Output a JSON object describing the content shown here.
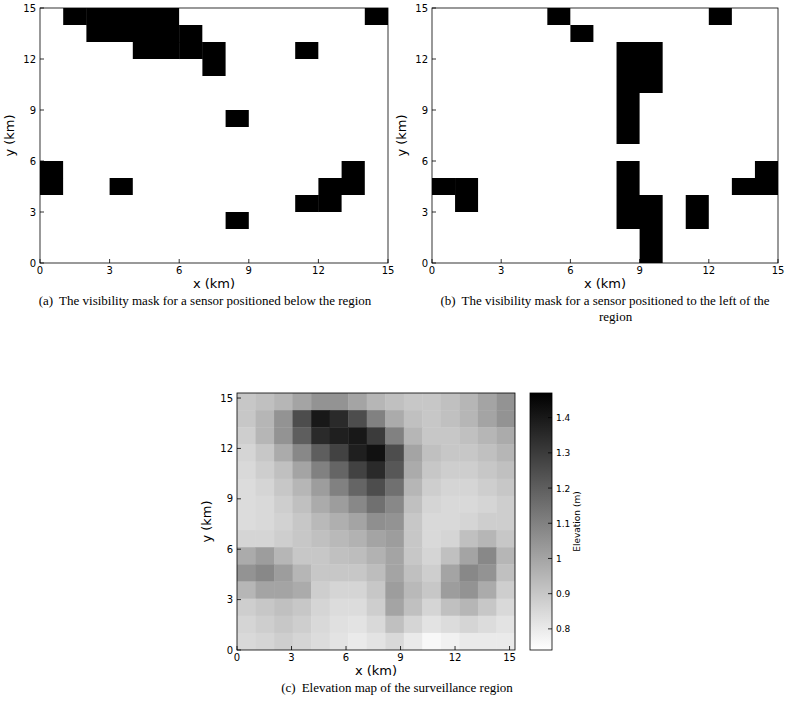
{
  "chart_data": [
    {
      "type": "heatmap",
      "panel_label": "(a)",
      "caption": "The visibility mask for a sensor positioned below the region",
      "x_label": "x (km)",
      "y_label": "y (km)",
      "xlim": [
        0,
        15
      ],
      "ylim": [
        0,
        15
      ],
      "xticks": [
        0,
        3,
        6,
        9,
        12,
        15
      ],
      "yticks": [
        0,
        3,
        6,
        9,
        12,
        15
      ],
      "cells": [
        [
          0,
          1,
          1,
          1,
          1,
          1,
          0,
          0,
          0,
          0,
          0,
          0,
          0,
          0,
          1
        ],
        [
          0,
          0,
          1,
          1,
          1,
          1,
          1,
          0,
          0,
          0,
          0,
          0,
          0,
          0,
          0
        ],
        [
          0,
          0,
          0,
          0,
          1,
          1,
          1,
          1,
          0,
          0,
          0,
          1,
          0,
          0,
          0
        ],
        [
          0,
          0,
          0,
          0,
          0,
          0,
          0,
          1,
          0,
          0,
          0,
          0,
          0,
          0,
          0
        ],
        [
          0,
          0,
          0,
          0,
          0,
          0,
          0,
          0,
          0,
          0,
          0,
          0,
          0,
          0,
          0
        ],
        [
          0,
          0,
          0,
          0,
          0,
          0,
          0,
          0,
          0,
          0,
          0,
          0,
          0,
          0,
          0
        ],
        [
          0,
          0,
          0,
          0,
          0,
          0,
          0,
          0,
          1,
          0,
          0,
          0,
          0,
          0,
          0
        ],
        [
          0,
          0,
          0,
          0,
          0,
          0,
          0,
          0,
          0,
          0,
          0,
          0,
          0,
          0,
          0
        ],
        [
          0,
          0,
          0,
          0,
          0,
          0,
          0,
          0,
          0,
          0,
          0,
          0,
          0,
          0,
          0
        ],
        [
          1,
          0,
          0,
          0,
          0,
          0,
          0,
          0,
          0,
          0,
          0,
          0,
          0,
          1,
          0
        ],
        [
          1,
          0,
          0,
          1,
          0,
          0,
          0,
          0,
          0,
          0,
          0,
          0,
          1,
          1,
          0
        ],
        [
          0,
          0,
          0,
          0,
          0,
          0,
          0,
          0,
          0,
          0,
          0,
          1,
          1,
          0,
          0
        ],
        [
          0,
          0,
          0,
          0,
          0,
          0,
          0,
          0,
          1,
          0,
          0,
          0,
          0,
          0,
          0
        ],
        [
          0,
          0,
          0,
          0,
          0,
          0,
          0,
          0,
          0,
          0,
          0,
          0,
          0,
          0,
          0
        ],
        [
          0,
          0,
          0,
          0,
          0,
          0,
          0,
          0,
          0,
          0,
          0,
          0,
          0,
          0,
          0
        ]
      ]
    },
    {
      "type": "heatmap",
      "panel_label": "(b)",
      "caption": "The visibility mask for a sensor positioned to the left of the region",
      "x_label": "x (km)",
      "y_label": "y (km)",
      "xlim": [
        0,
        15
      ],
      "ylim": [
        0,
        15
      ],
      "xticks": [
        0,
        3,
        6,
        9,
        12,
        15
      ],
      "yticks": [
        0,
        3,
        6,
        9,
        12,
        15
      ],
      "cells": [
        [
          0,
          0,
          0,
          0,
          0,
          1,
          0,
          0,
          0,
          0,
          0,
          0,
          1,
          0,
          0
        ],
        [
          0,
          0,
          0,
          0,
          0,
          0,
          1,
          0,
          0,
          0,
          0,
          0,
          0,
          0,
          0
        ],
        [
          0,
          0,
          0,
          0,
          0,
          0,
          0,
          0,
          1,
          1,
          0,
          0,
          0,
          0,
          0
        ],
        [
          0,
          0,
          0,
          0,
          0,
          0,
          0,
          0,
          1,
          1,
          0,
          0,
          0,
          0,
          0
        ],
        [
          0,
          0,
          0,
          0,
          0,
          0,
          0,
          0,
          1,
          1,
          0,
          0,
          0,
          0,
          0
        ],
        [
          0,
          0,
          0,
          0,
          0,
          0,
          0,
          0,
          1,
          0,
          0,
          0,
          0,
          0,
          0
        ],
        [
          0,
          0,
          0,
          0,
          0,
          0,
          0,
          0,
          1,
          0,
          0,
          0,
          0,
          0,
          0
        ],
        [
          0,
          0,
          0,
          0,
          0,
          0,
          0,
          0,
          1,
          0,
          0,
          0,
          0,
          0,
          0
        ],
        [
          0,
          0,
          0,
          0,
          0,
          0,
          0,
          0,
          0,
          0,
          0,
          0,
          0,
          0,
          0
        ],
        [
          0,
          0,
          0,
          0,
          0,
          0,
          0,
          0,
          1,
          0,
          0,
          0,
          0,
          0,
          1
        ],
        [
          1,
          1,
          0,
          0,
          0,
          0,
          0,
          0,
          1,
          0,
          0,
          0,
          0,
          1,
          1
        ],
        [
          0,
          1,
          0,
          0,
          0,
          0,
          0,
          0,
          1,
          1,
          0,
          1,
          0,
          0,
          0
        ],
        [
          0,
          0,
          0,
          0,
          0,
          0,
          0,
          0,
          1,
          1,
          0,
          1,
          0,
          0,
          0
        ],
        [
          0,
          0,
          0,
          0,
          0,
          0,
          0,
          0,
          0,
          1,
          0,
          0,
          0,
          0,
          0
        ],
        [
          0,
          0,
          0,
          0,
          0,
          0,
          0,
          0,
          0,
          1,
          0,
          0,
          0,
          0,
          0
        ]
      ]
    },
    {
      "type": "heatmap",
      "panel_label": "(c)",
      "caption": "Elevation map of the surveillance region",
      "x_label": "x (km)",
      "y_label": "y (km)",
      "xlim": [
        0,
        15.3
      ],
      "ylim": [
        0,
        15.3
      ],
      "xticks": [
        0,
        3,
        6,
        9,
        12,
        15
      ],
      "yticks": [
        0,
        3,
        6,
        9,
        12,
        15
      ],
      "colorbar_label": "Elevation (m)",
      "colorbar_lim": [
        0.74,
        1.47
      ],
      "colorbar_ticks": [
        0.8,
        0.9,
        1,
        1.1,
        1.2,
        1.3,
        1.4
      ],
      "cells": [
        [
          0.9,
          0.92,
          0.95,
          1.0,
          1.05,
          1.05,
          1.0,
          0.95,
          0.92,
          0.9,
          0.9,
          0.92,
          0.95,
          1.0,
          1.05
        ],
        [
          0.9,
          0.95,
          1.05,
          1.25,
          1.4,
          1.35,
          1.25,
          1.1,
          0.98,
          0.92,
          0.9,
          0.92,
          0.95,
          1.0,
          1.05
        ],
        [
          0.88,
          0.95,
          1.05,
          1.2,
          1.35,
          1.38,
          1.4,
          1.3,
          1.1,
          0.95,
          0.9,
          0.9,
          0.92,
          0.95,
          0.98
        ],
        [
          0.86,
          0.9,
          0.98,
          1.08,
          1.2,
          1.28,
          1.38,
          1.42,
          1.25,
          1.0,
          0.92,
          0.9,
          0.9,
          0.92,
          0.95
        ],
        [
          0.85,
          0.88,
          0.92,
          1.0,
          1.1,
          1.18,
          1.28,
          1.35,
          1.22,
          0.98,
          0.9,
          0.88,
          0.88,
          0.9,
          0.92
        ],
        [
          0.84,
          0.86,
          0.9,
          0.95,
          1.02,
          1.1,
          1.18,
          1.25,
          1.15,
          0.95,
          0.88,
          0.86,
          0.86,
          0.88,
          0.9
        ],
        [
          0.84,
          0.85,
          0.88,
          0.92,
          0.98,
          1.02,
          1.08,
          1.15,
          1.08,
          0.92,
          0.86,
          0.85,
          0.85,
          0.86,
          0.88
        ],
        [
          0.84,
          0.85,
          0.87,
          0.9,
          0.94,
          0.97,
          1.0,
          1.06,
          1.05,
          0.9,
          0.85,
          0.85,
          0.86,
          0.88,
          0.88
        ],
        [
          0.86,
          0.86,
          0.88,
          0.9,
          0.92,
          0.94,
          0.96,
          1.0,
          1.02,
          0.9,
          0.85,
          0.86,
          0.92,
          0.95,
          0.9
        ],
        [
          0.98,
          1.02,
          0.95,
          0.9,
          0.9,
          0.92,
          0.93,
          0.96,
          1.0,
          0.9,
          0.86,
          0.92,
          1.0,
          1.08,
          0.95
        ],
        [
          1.05,
          1.08,
          1.02,
          0.95,
          0.9,
          0.9,
          0.9,
          0.93,
          1.0,
          0.92,
          0.88,
          1.0,
          1.08,
          1.05,
          0.92
        ],
        [
          0.95,
          1.0,
          1.0,
          0.98,
          0.88,
          0.86,
          0.86,
          0.9,
          1.02,
          0.94,
          0.9,
          1.02,
          1.05,
          0.98,
          0.88
        ],
        [
          0.88,
          0.9,
          0.92,
          0.9,
          0.86,
          0.84,
          0.84,
          0.88,
          1.0,
          0.92,
          0.86,
          0.92,
          0.95,
          0.9,
          0.85
        ],
        [
          0.86,
          0.88,
          0.9,
          0.88,
          0.85,
          0.83,
          0.82,
          0.85,
          0.92,
          0.86,
          0.82,
          0.84,
          0.86,
          0.84,
          0.82
        ],
        [
          0.85,
          0.86,
          0.88,
          0.86,
          0.84,
          0.82,
          0.8,
          0.82,
          0.85,
          0.8,
          0.76,
          0.78,
          0.8,
          0.8,
          0.8
        ]
      ]
    }
  ]
}
